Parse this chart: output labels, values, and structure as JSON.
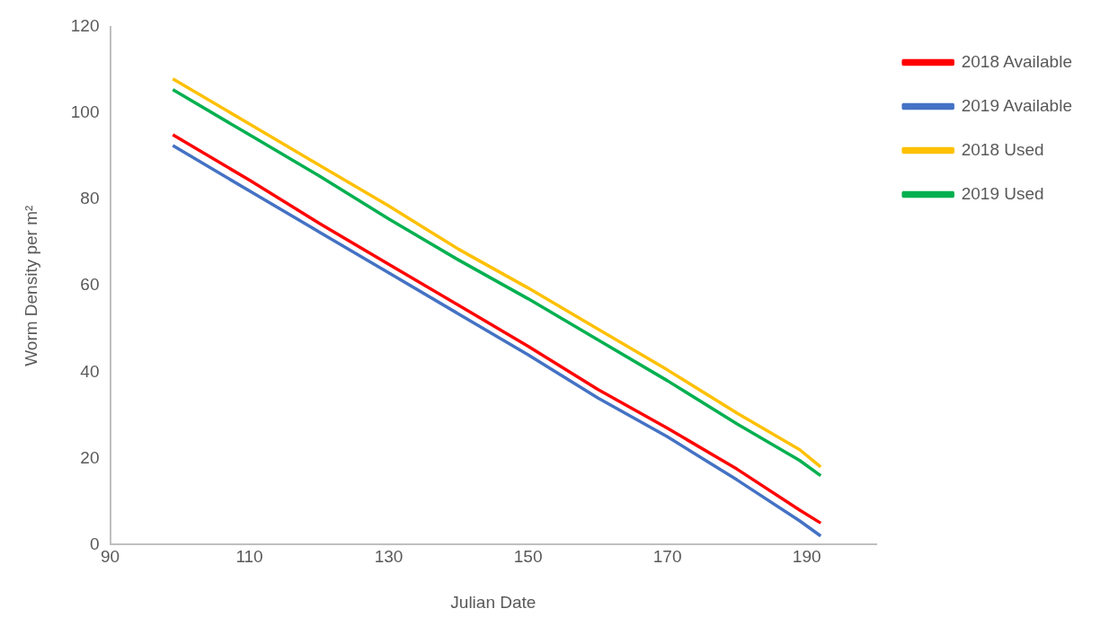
{
  "chart_data": {
    "type": "line",
    "xlabel": "Julian Date",
    "ylabel": "Worm Density per m²",
    "xlim": [
      90,
      200
    ],
    "xticks": [
      90,
      110,
      130,
      150,
      170,
      190
    ],
    "ylim": [
      0,
      120
    ],
    "yticks": [
      0,
      20,
      40,
      60,
      80,
      100,
      120
    ],
    "x": [
      99,
      110,
      120,
      130,
      140,
      150,
      160,
      170,
      180,
      189,
      192
    ],
    "series": [
      {
        "name": "2018 Available",
        "color": "#ff0000",
        "values": [
          95,
          84.5,
          74.5,
          65,
          55.5,
          46,
          36,
          27,
          17.5,
          8,
          5
        ]
      },
      {
        "name": "2019 Available",
        "color": "#4472c4",
        "values": [
          92.5,
          82,
          72.5,
          63,
          53.5,
          44,
          34,
          25,
          15,
          5.5,
          2
        ]
      },
      {
        "name": "2018 Used",
        "color": "#ffc000",
        "values": [
          108,
          97.5,
          88,
          78.5,
          68.5,
          59.5,
          50,
          40.5,
          30.5,
          22,
          18
        ]
      },
      {
        "name": "2019 Used",
        "color": "#00b050",
        "values": [
          105.5,
          95,
          85.5,
          75.5,
          66,
          57,
          47.5,
          38,
          28,
          19.5,
          16
        ]
      }
    ],
    "grid": false,
    "legend": "top right",
    "marker": "none",
    "line_style": "solid"
  }
}
